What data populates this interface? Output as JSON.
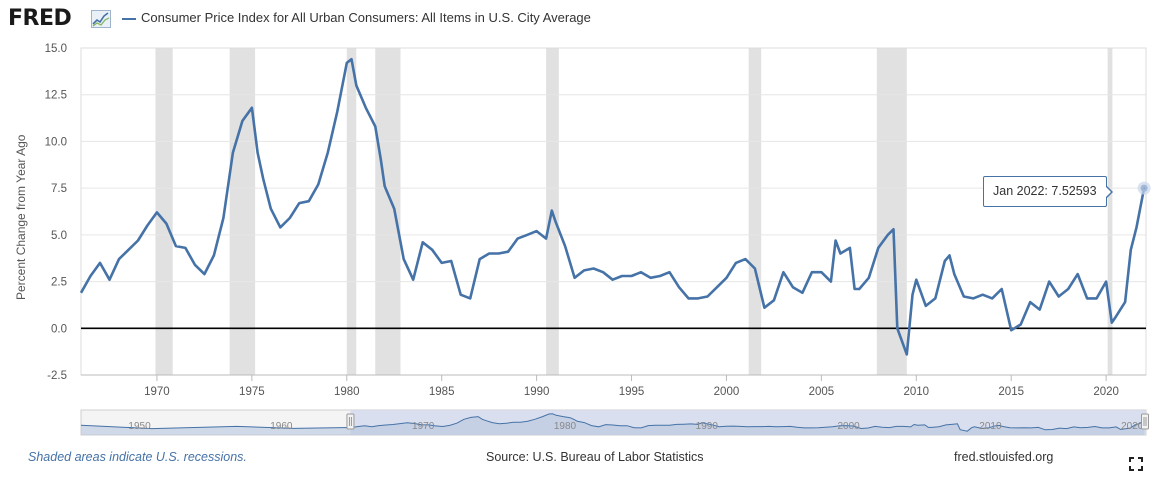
{
  "header": {
    "logo_text": "FRED",
    "logo_icon": "sparkline-icon",
    "series_title": "Consumer Price Index for All Urban Consumers: All Items in U.S. City Average"
  },
  "colors": {
    "series": "#4572a7",
    "recession": "#e1e1e1",
    "navigator_fill": "#d3dbec",
    "zero_line": "#000000"
  },
  "tooltip": {
    "date": "Jan 2022:",
    "value": "7.52593"
  },
  "footer": {
    "recession_note": "Shaded areas indicate U.S. recessions.",
    "source": "Source: U.S. Bureau of Labor Statistics",
    "site": "fred.stlouisfed.org"
  },
  "controls": {
    "fullscreen_icon": "fullscreen-icon",
    "navigator_left_handle": "range-handle-left",
    "navigator_right_handle": "range-handle-right"
  },
  "navigator": {
    "tick_labels": [
      "1950",
      "1960",
      "1970",
      "1980",
      "1990",
      "2000",
      "2010",
      "2020"
    ],
    "selected_range": [
      "1966-01",
      "2022-01"
    ]
  },
  "chart_data": {
    "type": "line",
    "title": "Consumer Price Index for All Urban Consumers: All Items in U.S. City Average",
    "ylabel": "Percent Change from Year Ago",
    "xlabel": "",
    "xlim": [
      1966.0,
      2022.1
    ],
    "ylim": [
      -2.5,
      15.0
    ],
    "y_ticks": [
      "15.0",
      "12.5",
      "10.0",
      "7.5",
      "5.0",
      "2.5",
      "0.0",
      "-2.5"
    ],
    "x_ticks": [
      "1970",
      "1975",
      "1980",
      "1985",
      "1990",
      "1995",
      "2000",
      "2005",
      "2010",
      "2015",
      "2020"
    ],
    "grid": "horizontal",
    "legend": "top-left",
    "recessions": [
      [
        1969.92,
        1970.83
      ],
      [
        1973.83,
        1975.17
      ],
      [
        1980.0,
        1980.5
      ],
      [
        1981.5,
        1982.83
      ],
      [
        1990.5,
        1991.17
      ],
      [
        2001.17,
        2001.83
      ],
      [
        2007.92,
        2009.5
      ],
      [
        2020.08,
        2020.33
      ]
    ],
    "series": [
      {
        "name": "Consumer Price Index for All Urban Consumers: All Items in U.S. City Average",
        "x": [
          1966.0,
          1966.5,
          1967.0,
          1967.5,
          1968.0,
          1968.5,
          1969.0,
          1969.5,
          1970.0,
          1970.5,
          1971.0,
          1971.5,
          1972.0,
          1972.5,
          1973.0,
          1973.5,
          1974.0,
          1974.5,
          1975.0,
          1975.3,
          1975.6,
          1976.0,
          1976.5,
          1977.0,
          1977.5,
          1978.0,
          1978.5,
          1979.0,
          1979.5,
          1980.0,
          1980.25,
          1980.5,
          1981.0,
          1981.5,
          1981.8,
          1982.0,
          1982.5,
          1983.0,
          1983.5,
          1984.0,
          1984.5,
          1985.0,
          1985.5,
          1986.0,
          1986.5,
          1987.0,
          1987.5,
          1988.0,
          1988.5,
          1989.0,
          1989.5,
          1990.0,
          1990.5,
          1990.8,
          1991.0,
          1991.5,
          1992.0,
          1992.5,
          1993.0,
          1993.5,
          1994.0,
          1994.5,
          1995.0,
          1995.5,
          1996.0,
          1996.5,
          1997.0,
          1997.5,
          1998.0,
          1998.5,
          1999.0,
          1999.5,
          2000.0,
          2000.5,
          2001.0,
          2001.5,
          2002.0,
          2002.5,
          2003.0,
          2003.5,
          2004.0,
          2004.5,
          2005.0,
          2005.5,
          2005.75,
          2006.0,
          2006.5,
          2006.75,
          2007.0,
          2007.5,
          2008.0,
          2008.5,
          2008.8,
          2009.0,
          2009.5,
          2009.8,
          2010.0,
          2010.5,
          2011.0,
          2011.5,
          2011.75,
          2012.0,
          2012.5,
          2013.0,
          2013.5,
          2014.0,
          2014.5,
          2015.0,
          2015.5,
          2016.0,
          2016.5,
          2017.0,
          2017.5,
          2018.0,
          2018.5,
          2019.0,
          2019.5,
          2020.0,
          2020.3,
          2020.5,
          2021.0,
          2021.3,
          2021.6,
          2022.0
        ],
        "values": [
          1.9,
          2.8,
          3.5,
          2.6,
          3.7,
          4.2,
          4.7,
          5.5,
          6.2,
          5.6,
          4.4,
          4.3,
          3.4,
          2.9,
          3.9,
          5.9,
          9.4,
          11.1,
          11.8,
          9.4,
          8.0,
          6.4,
          5.4,
          5.9,
          6.7,
          6.8,
          7.7,
          9.4,
          11.6,
          14.2,
          14.4,
          13.0,
          11.8,
          10.8,
          9.0,
          7.6,
          6.4,
          3.7,
          2.6,
          4.6,
          4.2,
          3.5,
          3.6,
          1.8,
          1.6,
          3.7,
          4.0,
          4.0,
          4.1,
          4.8,
          5.0,
          5.2,
          4.8,
          6.3,
          5.7,
          4.4,
          2.7,
          3.1,
          3.2,
          3.0,
          2.6,
          2.8,
          2.8,
          3.0,
          2.7,
          2.8,
          3.0,
          2.2,
          1.6,
          1.6,
          1.7,
          2.2,
          2.7,
          3.5,
          3.7,
          3.2,
          1.1,
          1.5,
          3.0,
          2.2,
          1.9,
          3.0,
          3.0,
          2.5,
          4.7,
          4.0,
          4.3,
          2.1,
          2.1,
          2.7,
          4.3,
          5.0,
          5.3,
          0.0,
          -1.4,
          1.8,
          2.6,
          1.2,
          1.6,
          3.6,
          3.9,
          2.9,
          1.7,
          1.6,
          1.8,
          1.6,
          2.1,
          -0.1,
          0.2,
          1.4,
          1.0,
          2.5,
          1.7,
          2.1,
          2.9,
          1.6,
          1.6,
          2.5,
          0.3,
          0.6,
          1.4,
          4.2,
          5.4,
          7.5
        ]
      }
    ]
  }
}
